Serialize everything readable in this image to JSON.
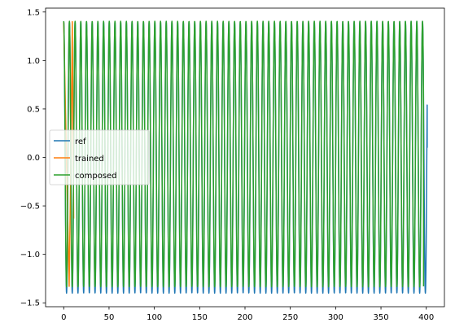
{
  "chart_data": {
    "type": "line",
    "title": "",
    "xlabel": "",
    "ylabel": "",
    "xlim": [
      -20,
      420
    ],
    "ylim": [
      -1.54,
      1.54
    ],
    "xticks": [
      0,
      50,
      100,
      150,
      200,
      250,
      300,
      350,
      400
    ],
    "xtick_labels": [
      "0",
      "50",
      "100",
      "150",
      "200",
      "250",
      "300",
      "350",
      "400"
    ],
    "yticks": [
      -1.5,
      -1.0,
      -0.5,
      0.0,
      0.5,
      1.0,
      1.5
    ],
    "ytick_labels": [
      "−1.5",
      "−1.0",
      "−0.5",
      "0.0",
      "0.5",
      "1.0",
      "1.5"
    ],
    "grid": false,
    "legend_position": "center-left",
    "series": [
      {
        "name": "ref",
        "color": "#1f77b4",
        "description": "oscillation between -1.40 and 1.40 with period ~6.28 over x 0 to 401",
        "amplitude": 1.4,
        "period": 6.2832,
        "x_start": 0,
        "x_end": 401,
        "y_start": 1.4,
        "y_end": 0.1
      },
      {
        "name": "trained",
        "color": "#ff7f0e",
        "points": [
          [
            0,
            1.4
          ],
          [
            3,
            0.0
          ],
          [
            6,
            -1.33
          ],
          [
            8,
            0.0
          ],
          [
            9.5,
            1.4
          ],
          [
            11,
            -0.63
          ]
        ]
      },
      {
        "name": "composed",
        "color": "#2ca02c",
        "description": "oscillation between -1.33 and 1.40 with period ~6.28 over x 0 to 397",
        "amplitude": 1.37,
        "offset": 0.035,
        "period": 6.2832,
        "x_start": 0,
        "x_end": 397,
        "y_start": 1.4,
        "y_end": -1.33
      }
    ],
    "legend": [
      "ref",
      "trained",
      "composed"
    ]
  }
}
